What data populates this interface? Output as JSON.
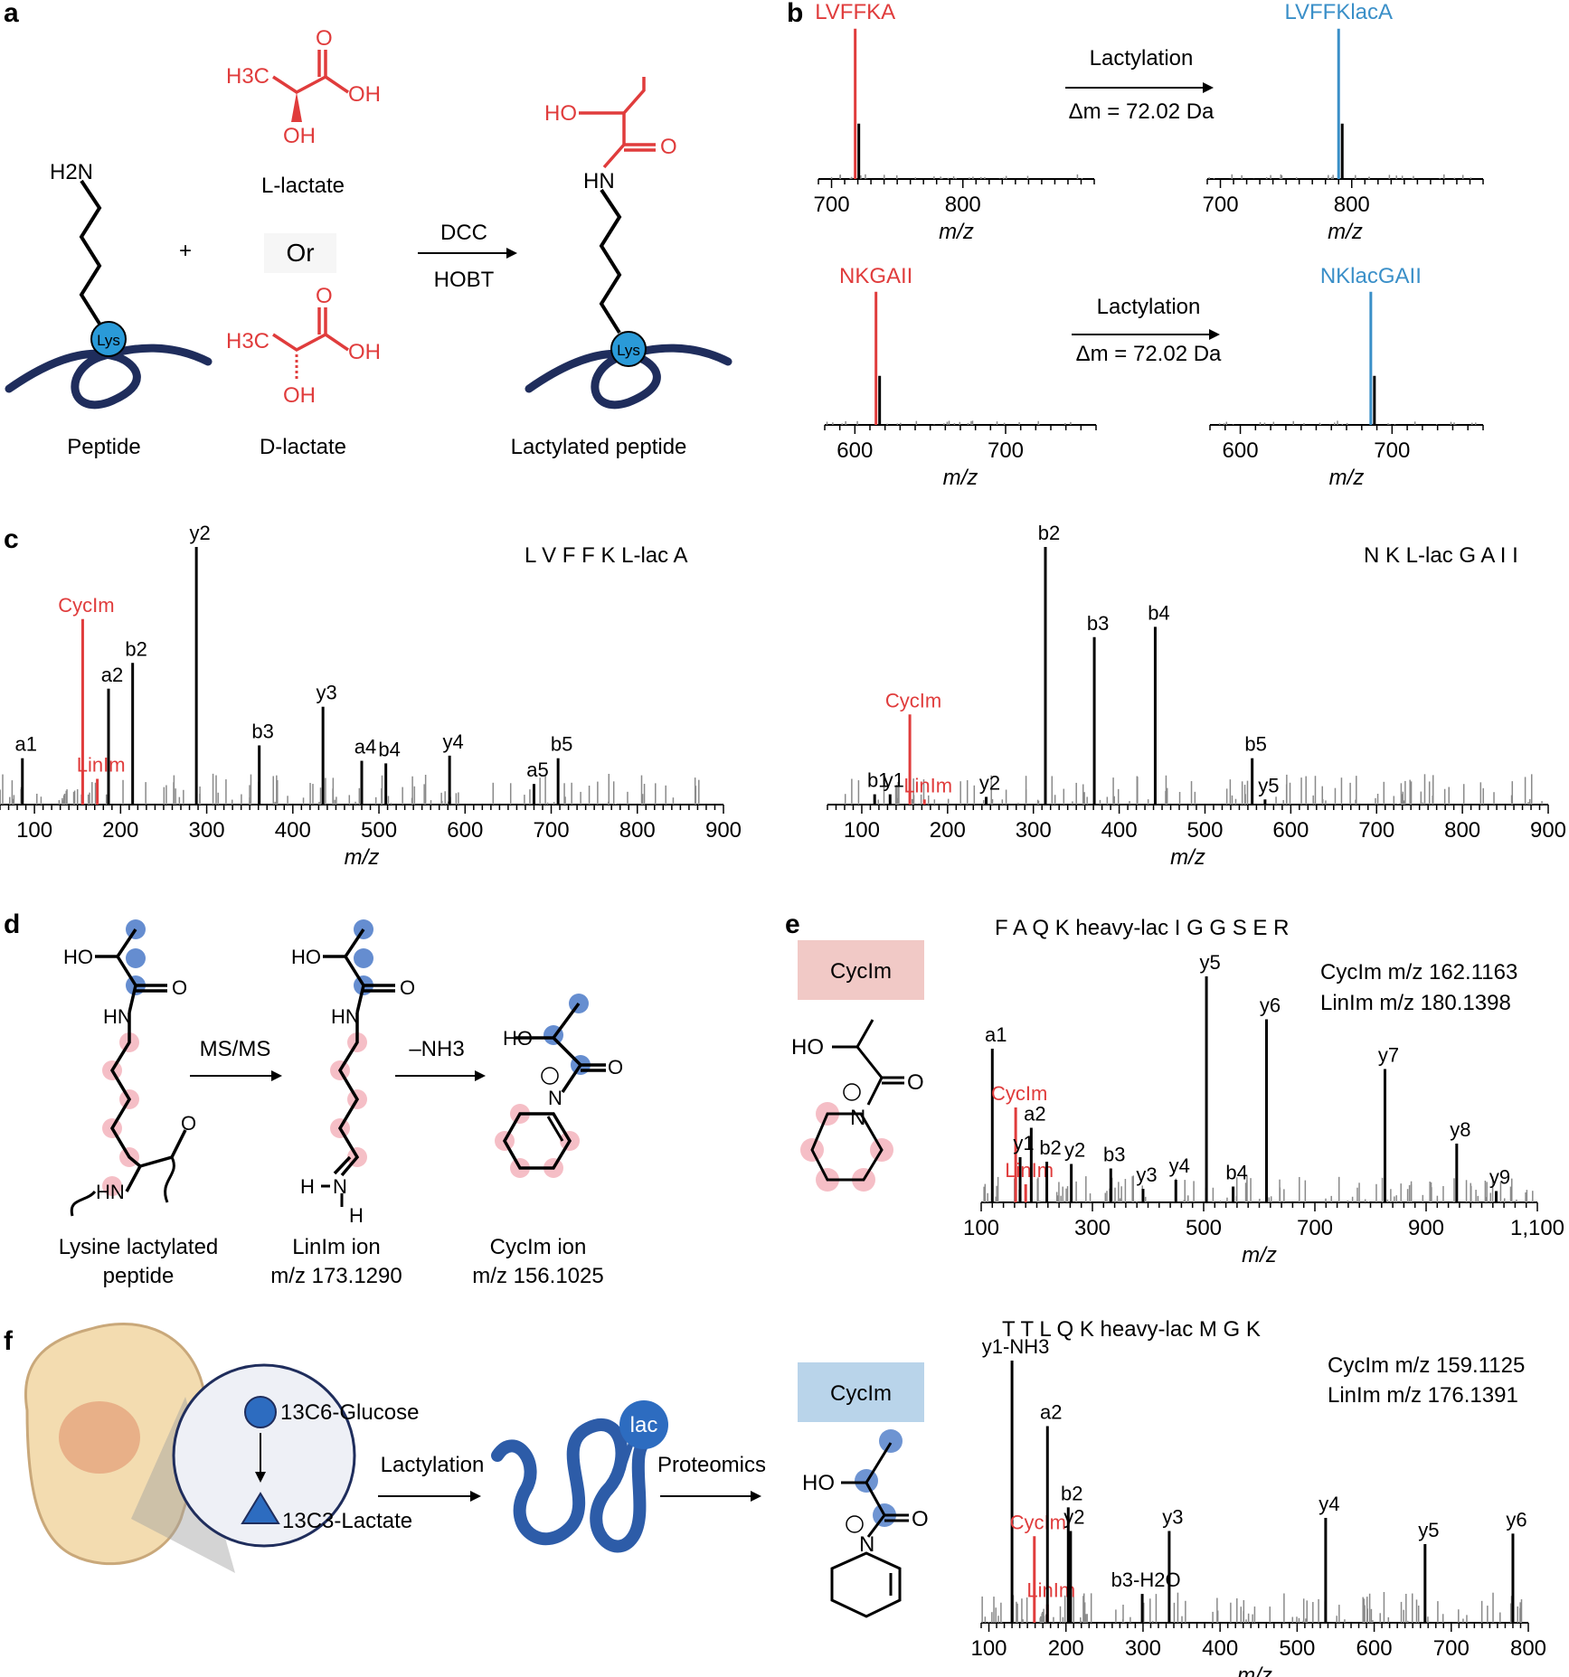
{
  "colors": {
    "red": "#e03c3c",
    "blue": "#3a8fc8",
    "navy": "#1f2d5c",
    "lys": "#2a9ad8",
    "pink": "#f4b8c0",
    "bluedot": "#4b7ac8",
    "grey": "#8a8a8a",
    "cyc_box_red": "#f1c9c6",
    "cyc_box_blue": "#b9d4ea"
  },
  "panels": {
    "a": "a",
    "b": "b",
    "c": "c",
    "d": "d",
    "e": "e",
    "f": "f"
  },
  "panel_a": {
    "h2n": "H2N",
    "lys": "Lys",
    "peptide": "Peptide",
    "plus": "+",
    "llactate": "L-lactate",
    "or": "Or",
    "dlactate": "D-lactate",
    "h3c": "H3C",
    "oh": "OH",
    "o": "O",
    "ho": "HO",
    "hn": "HN",
    "dcc": "DCC",
    "hobt": "HOBT",
    "lact_peptide": "Lactylated peptide"
  },
  "panel_b": {
    "spectra": [
      {
        "name": "LVFFKA",
        "name_color": "red"
      },
      {
        "name": "LVFFKlacA",
        "name_color": "blue"
      },
      {
        "name": "NKGAII",
        "name_color": "red"
      },
      {
        "name": "NKlacGAII",
        "name_color": "blue"
      }
    ],
    "arrow_label": "Lactylation",
    "dm": "Δm = 72.02 Da",
    "xlabel": "m/z"
  },
  "panel_c": {
    "xlabel": "m/z",
    "seq_left": "L V F F K L-lac A",
    "seq_right": "N K L-lac G A I I",
    "cycim": "CycIm",
    "linim": "LinIm"
  },
  "panel_d": {
    "msms": "MS/MS",
    "nh3": "–NH3",
    "ho": "HO",
    "o": "O",
    "hn": "HN",
    "n": "N",
    "h": "H",
    "lys_label1": "Lysine lactylated",
    "lys_label2": "peptide",
    "linim_label": "LinIm ion",
    "linim_mz": "m/z 173.1290",
    "cycim_label": "CycIm ion",
    "cycim_mz": "m/z 156.1025"
  },
  "panel_e": {
    "seq": "F A Q K heavy-lac I G G S E R",
    "cycim_box": "CycIm",
    "cycim_mz": "CycIm m/z 162.1163",
    "linim_mz": "LinIm m/z 180.1398",
    "ho": "HO",
    "o": "O",
    "n": "N",
    "xlabel": "m/z",
    "cycim": "CycIm",
    "linim": "LinIm"
  },
  "panel_f": {
    "glucose": "13C6-Glucose",
    "lactate": "13C3-Lactate",
    "lactylation": "Lactylation",
    "lac": "lac",
    "proteomics": "Proteomics",
    "cycim_box": "CycIm",
    "ho": "HO",
    "o": "O",
    "n": "N",
    "seq": "T T L Q K heavy-lac M G K",
    "cycim_mz": "CycIm m/z 159.1125",
    "linim_mz": "LinIm m/z 176.1391",
    "xlabel": "m/z",
    "cycim": "CycIm",
    "linim": "LinIm"
  },
  "chart_data": [
    {
      "type": "bar",
      "title": "LVFFKA",
      "xlabel": "m/z",
      "xlim": [
        690,
        900
      ],
      "x": [
        718
      ],
      "values": [
        1.0
      ],
      "series_labels": [
        "LVFFKA"
      ]
    },
    {
      "type": "bar",
      "title": "LVFFKlacA",
      "xlabel": "m/z",
      "xlim": [
        690,
        900
      ],
      "x": [
        790
      ],
      "values": [
        1.0
      ],
      "series_labels": [
        "LVFFKlacA"
      ]
    },
    {
      "type": "bar",
      "title": "NKGAII",
      "xlabel": "m/z",
      "xlim": [
        580,
        760
      ],
      "x": [
        614
      ],
      "values": [
        1.0
      ],
      "series_labels": [
        "NKGAII"
      ]
    },
    {
      "type": "bar",
      "title": "NKlacGAII",
      "xlabel": "m/z",
      "xlim": [
        580,
        760
      ],
      "x": [
        686
      ],
      "values": [
        1.0
      ],
      "series_labels": [
        "NKlacGAII"
      ]
    },
    {
      "type": "bar",
      "title": "LVFFK(L-lac)A MS/MS",
      "xlabel": "m/z",
      "xlim": [
        60,
        900
      ],
      "peaks": [
        {
          "x": 86,
          "y": 0.18,
          "label": "a1"
        },
        {
          "x": 156,
          "y": 0.72,
          "label": "CycIm",
          "color": "red"
        },
        {
          "x": 173,
          "y": 0.1,
          "label": "LinIm",
          "color": "red"
        },
        {
          "x": 186,
          "y": 0.45,
          "label": "a2"
        },
        {
          "x": 214,
          "y": 0.55,
          "label": "b2"
        },
        {
          "x": 288,
          "y": 1.0,
          "label": "y2"
        },
        {
          "x": 361,
          "y": 0.23,
          "label": "b3"
        },
        {
          "x": 435,
          "y": 0.38,
          "label": "y3"
        },
        {
          "x": 480,
          "y": 0.17,
          "label": "a4"
        },
        {
          "x": 508,
          "y": 0.16,
          "label": "b4"
        },
        {
          "x": 582,
          "y": 0.19,
          "label": "y4"
        },
        {
          "x": 680,
          "y": 0.08,
          "label": "a5"
        },
        {
          "x": 708,
          "y": 0.18,
          "label": "b5"
        }
      ]
    },
    {
      "type": "bar",
      "title": "NK(L-lac)GAII MS/MS",
      "xlabel": "m/z",
      "xlim": [
        60,
        900
      ],
      "peaks": [
        {
          "x": 115,
          "y": 0.04,
          "label": "b1"
        },
        {
          "x": 133,
          "y": 0.04,
          "label": "y1"
        },
        {
          "x": 156,
          "y": 0.35,
          "label": "CycIm",
          "color": "red"
        },
        {
          "x": 173,
          "y": 0.02,
          "label": "LinIm",
          "color": "red"
        },
        {
          "x": 245,
          "y": 0.03,
          "label": "y2"
        },
        {
          "x": 314,
          "y": 1.0,
          "label": "b2"
        },
        {
          "x": 371,
          "y": 0.65,
          "label": "b3"
        },
        {
          "x": 442,
          "y": 0.69,
          "label": "b4"
        },
        {
          "x": 555,
          "y": 0.18,
          "label": "b5"
        },
        {
          "x": 570,
          "y": 0.02,
          "label": "y5"
        }
      ]
    },
    {
      "type": "bar",
      "title": "FAQK(heavy-lac)IGGSER MS/MS",
      "xlabel": "m/z",
      "xlim": [
        100,
        1100
      ],
      "peaks": [
        {
          "x": 120,
          "y": 0.68,
          "label": "a1"
        },
        {
          "x": 162,
          "y": 0.42,
          "label": "CycIm",
          "color": "red"
        },
        {
          "x": 170,
          "y": 0.2,
          "label": "y1"
        },
        {
          "x": 180,
          "y": 0.08,
          "label": "LinIm",
          "color": "red"
        },
        {
          "x": 190,
          "y": 0.33,
          "label": "a2"
        },
        {
          "x": 218,
          "y": 0.18,
          "label": "b2"
        },
        {
          "x": 262,
          "y": 0.17,
          "label": "y2"
        },
        {
          "x": 333,
          "y": 0.15,
          "label": "b3"
        },
        {
          "x": 391,
          "y": 0.06,
          "label": "y3"
        },
        {
          "x": 450,
          "y": 0.1,
          "label": "y4"
        },
        {
          "x": 505,
          "y": 1.0,
          "label": "y5"
        },
        {
          "x": 553,
          "y": 0.07,
          "label": "b4"
        },
        {
          "x": 613,
          "y": 0.81,
          "label": "y6"
        },
        {
          "x": 826,
          "y": 0.59,
          "label": "y7"
        },
        {
          "x": 955,
          "y": 0.26,
          "label": "y8"
        },
        {
          "x": 1026,
          "y": 0.05,
          "label": "y9"
        }
      ]
    },
    {
      "type": "bar",
      "title": "TTLQK(heavy-lac)MGK MS/MS",
      "xlabel": "m/z",
      "xlim": [
        90,
        800
      ],
      "peaks": [
        {
          "x": 130,
          "y": 1.0,
          "label": "y1-NH3"
        },
        {
          "x": 159,
          "y": 0.33,
          "label": "CycIm",
          "color": "red"
        },
        {
          "x": 176,
          "y": 0.07,
          "label": "LinIm",
          "color": "red"
        },
        {
          "x": 176,
          "y": 0.75,
          "label": "a2"
        },
        {
          "x": 203,
          "y": 0.44,
          "label": "b2"
        },
        {
          "x": 206,
          "y": 0.35,
          "label": "y2"
        },
        {
          "x": 299,
          "y": 0.11,
          "label": "b3-H2O"
        },
        {
          "x": 334,
          "y": 0.35,
          "label": "y3"
        },
        {
          "x": 537,
          "y": 0.4,
          "label": "y4"
        },
        {
          "x": 666,
          "y": 0.3,
          "label": "y5"
        },
        {
          "x": 780,
          "y": 0.34,
          "label": "y6"
        }
      ]
    }
  ]
}
